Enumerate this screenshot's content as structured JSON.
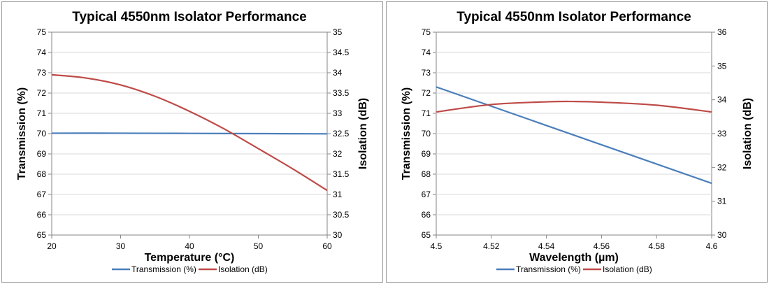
{
  "colors": {
    "transmission": "#4a7ebb",
    "isolation": "#be4b48",
    "grid": "#d9d9d9",
    "axis": "#868686"
  },
  "chart_data": [
    {
      "type": "line",
      "title": "Typical 4550nm Isolator Performance",
      "xlabel": "Temperature (°C)",
      "ylabel": "Transmission (%)",
      "y2label": "Isolation (dB)",
      "xlim": [
        20,
        60
      ],
      "ylim": [
        65,
        75
      ],
      "y2lim": [
        30,
        35
      ],
      "xticks": [
        "20",
        "30",
        "40",
        "50",
        "60"
      ],
      "yticks": [
        "65",
        "66",
        "67",
        "68",
        "69",
        "70",
        "71",
        "72",
        "73",
        "74",
        "75"
      ],
      "y2ticks": [
        "30",
        "30.5",
        "31",
        "31.5",
        "32",
        "32.5",
        "33",
        "33.5",
        "34",
        "34.5",
        "35"
      ],
      "grid": true,
      "legend": "bottom",
      "series": [
        {
          "name": "Transmission (%)",
          "axis": "left",
          "x": [
            20,
            30,
            40,
            50,
            60
          ],
          "y": [
            70.02,
            70.02,
            70.01,
            70.0,
            69.99
          ]
        },
        {
          "name": "Isolation (dB)",
          "axis": "right",
          "x": [
            20,
            25,
            30,
            35,
            40,
            45,
            50,
            55,
            60
          ],
          "y": [
            33.95,
            33.87,
            33.7,
            33.42,
            33.05,
            32.62,
            32.13,
            31.63,
            31.1
          ]
        }
      ]
    },
    {
      "type": "line",
      "title": "Typical 4550nm Isolator Performance",
      "xlabel": "Wavelength (µm)",
      "ylabel": "Transmission (%)",
      "y2label": "Isolation (dB)",
      "xlim": [
        4.5,
        4.6
      ],
      "ylim": [
        65,
        75
      ],
      "y2lim": [
        30,
        36
      ],
      "xticks": [
        "4.5",
        "4.52",
        "4.54",
        "4.56",
        "4.58",
        "4.6"
      ],
      "yticks": [
        "65",
        "66",
        "67",
        "68",
        "69",
        "70",
        "71",
        "72",
        "73",
        "74",
        "75"
      ],
      "y2ticks": [
        "30",
        "31",
        "32",
        "33",
        "34",
        "35",
        "36"
      ],
      "grid": true,
      "legend": "bottom",
      "series": [
        {
          "name": "Transmission (%)",
          "axis": "left",
          "x": [
            4.5,
            4.6
          ],
          "y": [
            72.3,
            67.55
          ]
        },
        {
          "name": "Isolation (dB)",
          "axis": "right",
          "x": [
            4.5,
            4.52,
            4.54,
            4.55,
            4.56,
            4.58,
            4.6
          ],
          "y": [
            33.64,
            33.86,
            33.94,
            33.95,
            33.93,
            33.84,
            33.64
          ]
        }
      ]
    }
  ]
}
